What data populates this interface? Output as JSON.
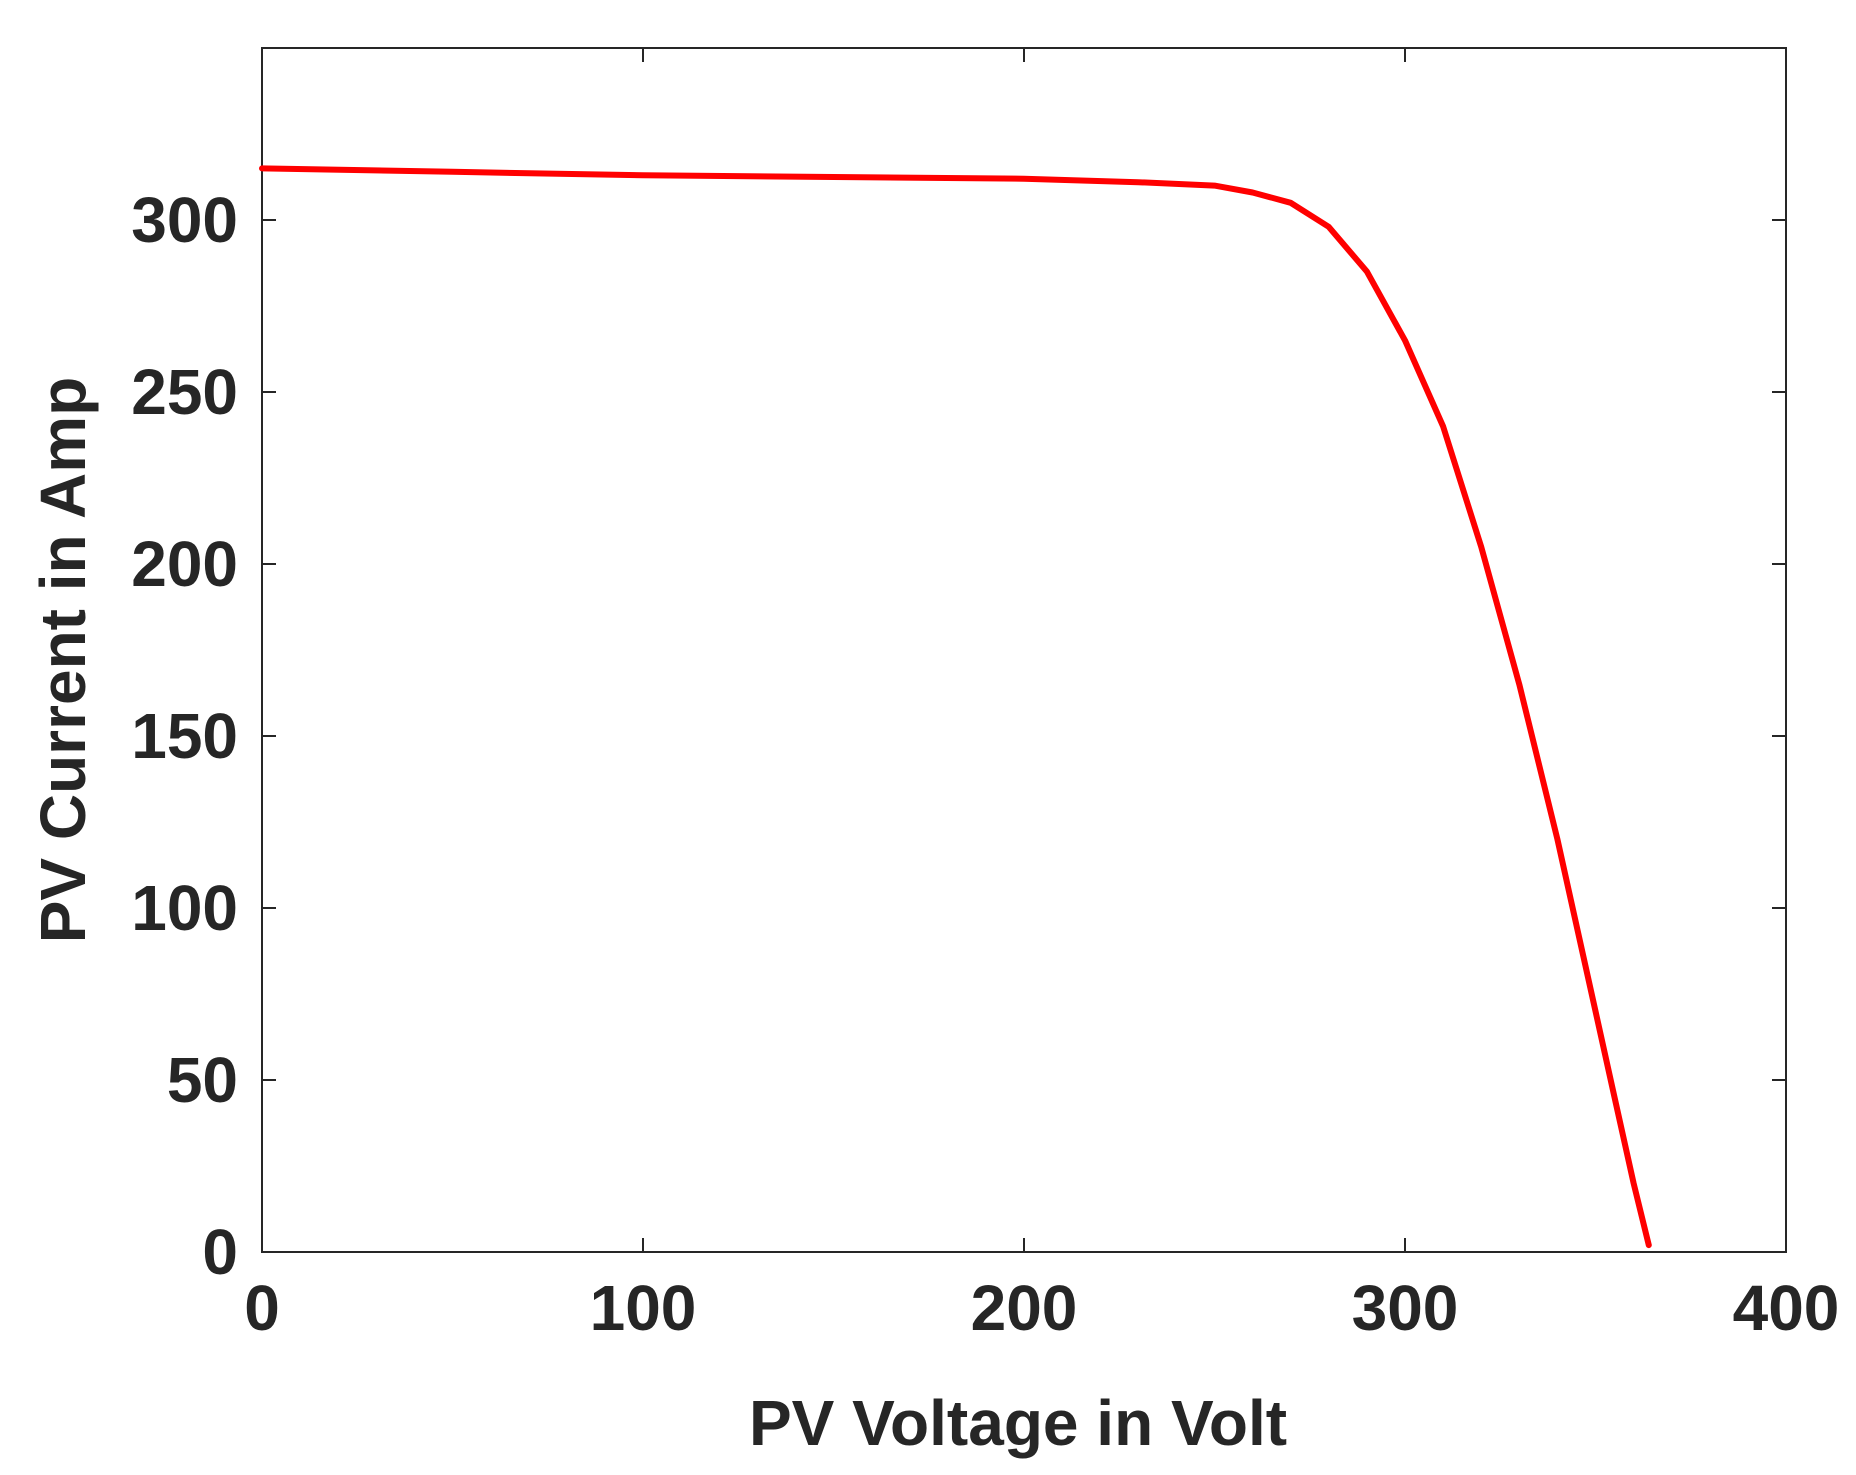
{
  "chart_data": {
    "type": "line",
    "title": "",
    "xlabel": "PV Voltage in Volt",
    "ylabel": "PV Current in Amp",
    "xlim": [
      0,
      400
    ],
    "ylim": [
      0,
      350
    ],
    "xticks": [
      0,
      100,
      200,
      300,
      400
    ],
    "yticks": [
      0,
      50,
      100,
      150,
      200,
      250,
      300
    ],
    "xtick_labels": [
      "0",
      "100",
      "200",
      "300",
      "400"
    ],
    "ytick_labels": [
      "0",
      "50",
      "100",
      "150",
      "200",
      "250",
      "300"
    ],
    "grid": false,
    "legend": null,
    "series": [
      {
        "color": "#ff0000",
        "x": [
          0,
          50,
          100,
          150,
          200,
          230,
          250,
          260,
          270,
          280,
          290,
          300,
          310,
          320,
          330,
          340,
          350,
          355,
          360,
          364
        ],
        "y": [
          315,
          314,
          313,
          312.5,
          312,
          311,
          310,
          308,
          305,
          298,
          285,
          265,
          240,
          205,
          165,
          120,
          70,
          45,
          20,
          2
        ]
      }
    ]
  }
}
